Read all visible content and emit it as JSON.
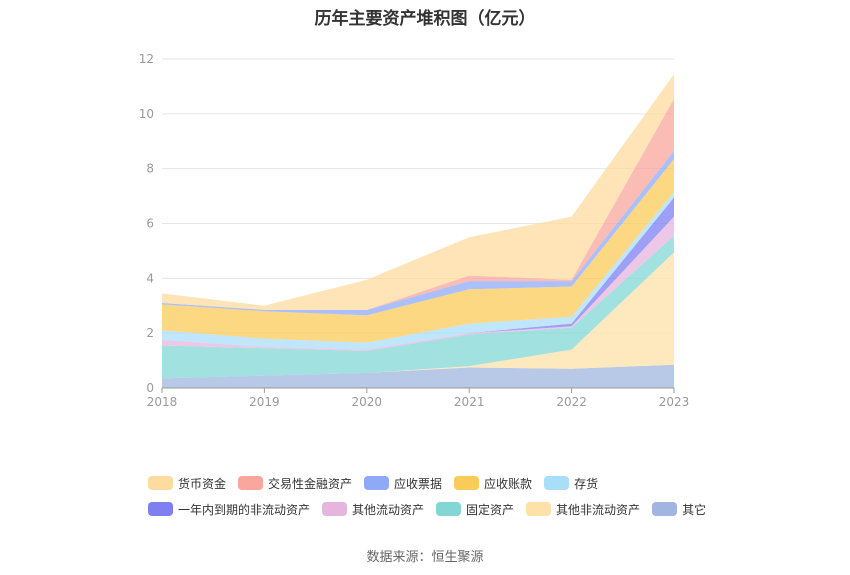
{
  "title": "历年主要资产堆积图（亿元）",
  "source": "数据来源：恒生聚源",
  "colors": [
    "#fedb9e",
    "#fba69d",
    "#8fa9f9",
    "#fbcb5a",
    "#a9def9",
    "#7d7ff3",
    "#e5b5dd",
    "#82d7d5",
    "#fde1a9",
    "#a0b5df"
  ],
  "chart_data": {
    "type": "area",
    "stacked": true,
    "title": "历年主要资产堆积图（亿元）",
    "xlabel": "",
    "ylabel": "",
    "x": [
      "2018",
      "2019",
      "2020",
      "2021",
      "2022",
      "2023"
    ],
    "ylim": [
      0,
      12
    ],
    "yticks": [
      0,
      2,
      4,
      6,
      8,
      10,
      12
    ],
    "grid": true,
    "legend_position": "bottom",
    "stack_order": [
      "其它",
      "其他非流动资产",
      "固定资产",
      "其他流动资产",
      "一年内到期的非流动资产",
      "存货",
      "应收账款",
      "应收票据",
      "交易性金融资产",
      "货币资金"
    ],
    "series": [
      {
        "name": "货币资金",
        "values": [
          0.35,
          0.15,
          1.1,
          1.4,
          2.3,
          0.9
        ]
      },
      {
        "name": "交易性金融资产",
        "values": [
          0,
          0,
          0,
          0.2,
          0.05,
          1.9
        ]
      },
      {
        "name": "应收票据",
        "values": [
          0.05,
          0.05,
          0.2,
          0.3,
          0.2,
          0.3
        ]
      },
      {
        "name": "应收账款",
        "values": [
          0.95,
          1.0,
          1.0,
          1.25,
          1.1,
          1.2
        ]
      },
      {
        "name": "存货",
        "values": [
          0.35,
          0.3,
          0.25,
          0.35,
          0.25,
          0.2
        ]
      },
      {
        "name": "一年内到期的非流动资产",
        "values": [
          0,
          0,
          0,
          0,
          0.1,
          0.7
        ]
      },
      {
        "name": "其他流动资产",
        "values": [
          0.2,
          0.05,
          0.05,
          0.05,
          0.05,
          0.7
        ]
      },
      {
        "name": "固定资产",
        "values": [
          1.2,
          1.0,
          0.8,
          1.15,
          0.8,
          0.6
        ]
      },
      {
        "name": "其他非流动资产",
        "values": [
          0,
          0,
          0,
          0.05,
          0.7,
          4.1
        ]
      },
      {
        "name": "其它",
        "values": [
          0.35,
          0.45,
          0.55,
          0.75,
          0.7,
          0.85
        ]
      }
    ]
  }
}
